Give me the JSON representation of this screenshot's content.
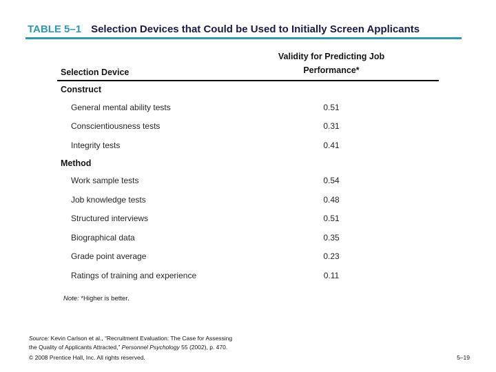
{
  "slide": {
    "header": {
      "table_label": "TABLE 5–1",
      "title": "Selection Devices that Could be Used to Initially Screen Applicants"
    },
    "table": {
      "col1_header": "Selection Device",
      "col2_header_line1": "Validity for Predicting Job",
      "col2_header_line2": "Performance*",
      "sections": [
        {
          "name": "Construct",
          "rows": [
            {
              "label": "General mental ability tests",
              "value": "0.51"
            },
            {
              "label": "Conscientiousness tests",
              "value": "0.31"
            },
            {
              "label": "Integrity tests",
              "value": "0.41"
            }
          ]
        },
        {
          "name": "Method",
          "rows": [
            {
              "label": "Work sample tests",
              "value": "0.54"
            },
            {
              "label": "Job knowledge tests",
              "value": "0.48"
            },
            {
              "label": "Structured interviews",
              "value": "0.51"
            },
            {
              "label": "Biographical data",
              "value": "0.35"
            },
            {
              "label": "Grade point average",
              "value": "0.23"
            },
            {
              "label": "Ratings of training and experience",
              "value": "0.11"
            }
          ]
        }
      ]
    },
    "note": {
      "label": "Note:",
      "rest": " *Higher is better."
    },
    "source": {
      "label": "Source:",
      "line1_rest": " Kevin Carlson et al., “Recruitment Evaluation: The Case for Assessing",
      "line2_start": "the Quality of Applicants Attracted,” ",
      "journal": "Personnel Psychology",
      "line2_rest": " 55 (2002), p. 470."
    },
    "footer": {
      "copyright": "© 2008 Prentice Hall, Inc. All rights reserved.",
      "slide_number": "5–19"
    },
    "colors": {
      "accent_teal": "#2d99b0",
      "title_navy": "#1a1a47",
      "rule_black": "#000000"
    }
  }
}
